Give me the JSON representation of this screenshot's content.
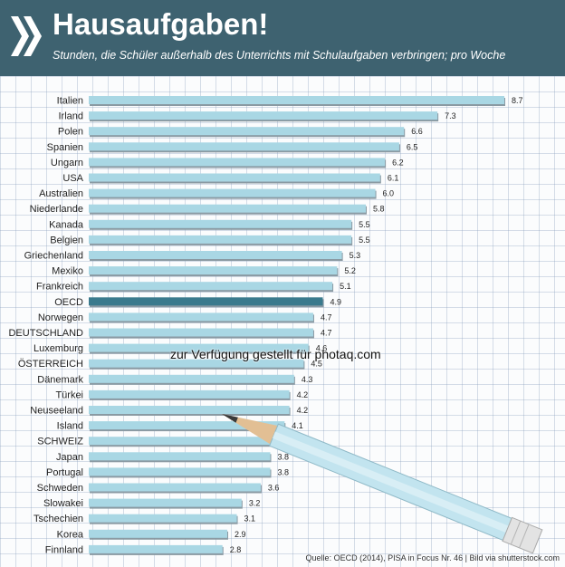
{
  "header": {
    "title": "Hausaufgaben!",
    "subtitle": "Stunden, die Schüler außerhalb des Unterrichts mit Schulaufgaben verbringen; pro Woche",
    "logo_icon": "double-chevron-right-icon",
    "background_color": "#3e6270"
  },
  "overlay": {
    "watermark": "zur Verfügung gestellt für photaq.com",
    "source": "Quelle: OECD (2014), PISA in Focus Nr. 46 | Bild via shutterstock.com",
    "decoration": "pencil-icon"
  },
  "chart_data": {
    "type": "bar",
    "orientation": "horizontal",
    "categories": [
      "Italien",
      "Irland",
      "Polen",
      "Spanien",
      "Ungarn",
      "USA",
      "Australien",
      "Niederlande",
      "Kanada",
      "Belgien",
      "Griechenland",
      "Mexiko",
      "Frankreich",
      "OECD",
      "Norwegen",
      "DEUTSCHLAND",
      "Luxemburg",
      "ÖSTERREICH",
      "Dänemark",
      "Türkei",
      "Neuseeland",
      "Island",
      "SCHWEIZ",
      "Japan",
      "Portugal",
      "Schweden",
      "Slowakei",
      "Tschechien",
      "Korea",
      "Finnland"
    ],
    "values": [
      8.7,
      7.3,
      6.6,
      6.5,
      6.2,
      6.1,
      6.0,
      5.8,
      5.5,
      5.5,
      5.3,
      5.2,
      5.1,
      4.9,
      4.7,
      4.7,
      4.6,
      4.5,
      4.3,
      4.2,
      4.2,
      4.1,
      4.0,
      3.8,
      3.8,
      3.6,
      3.2,
      3.1,
      2.9,
      2.8
    ],
    "value_labels": [
      "8.7",
      "7.3",
      "6.6",
      "6.5",
      "6.2",
      "6.1",
      "6.0",
      "5.8",
      "5.5",
      "5.5",
      "5.3",
      "5.2",
      "5.1",
      "4.9",
      "4.7",
      "4.7",
      "4.6",
      "4.5",
      "4.3",
      "4.2",
      "4.2",
      "4.1",
      "4.0",
      "3.8",
      "3.8",
      "3.6",
      "3.2",
      "3.1",
      "2.9",
      "2.8"
    ],
    "highlight": "OECD",
    "colors": {
      "bar": "#a9d7e4",
      "bar_shadow": "#8a9aa3",
      "highlight": "#3a7a8d"
    },
    "xlim": [
      0,
      8.7
    ],
    "grid": true,
    "legend": "none"
  }
}
